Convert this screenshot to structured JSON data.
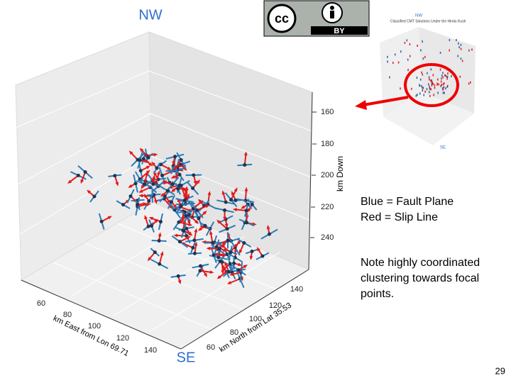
{
  "labels": {
    "top": "NW",
    "bottom": "SE"
  },
  "plot": {
    "z_axis": {
      "label": "km Down",
      "ticks": [
        "160",
        "180",
        "200",
        "220",
        "240"
      ]
    },
    "x_axis": {
      "label": "km East from Lon 69.71",
      "ticks": [
        "60",
        "80",
        "100",
        "120",
        "140"
      ]
    },
    "y_axis": {
      "label": "km North from Lat 35.53",
      "ticks": [
        "60",
        "80",
        "100",
        "120",
        "140"
      ]
    }
  },
  "badge": {
    "text": "BY"
  },
  "inset": {
    "title": "Classified CMT Solutions Under the Hindu Kush",
    "top": "NW",
    "bottom": "SE"
  },
  "legend": [
    "Blue =  Fault Plane",
    "Red = Slip Line"
  ],
  "note": [
    "Note highly coordinated",
    "clustering towards focal",
    "points."
  ],
  "page_number": "29"
}
